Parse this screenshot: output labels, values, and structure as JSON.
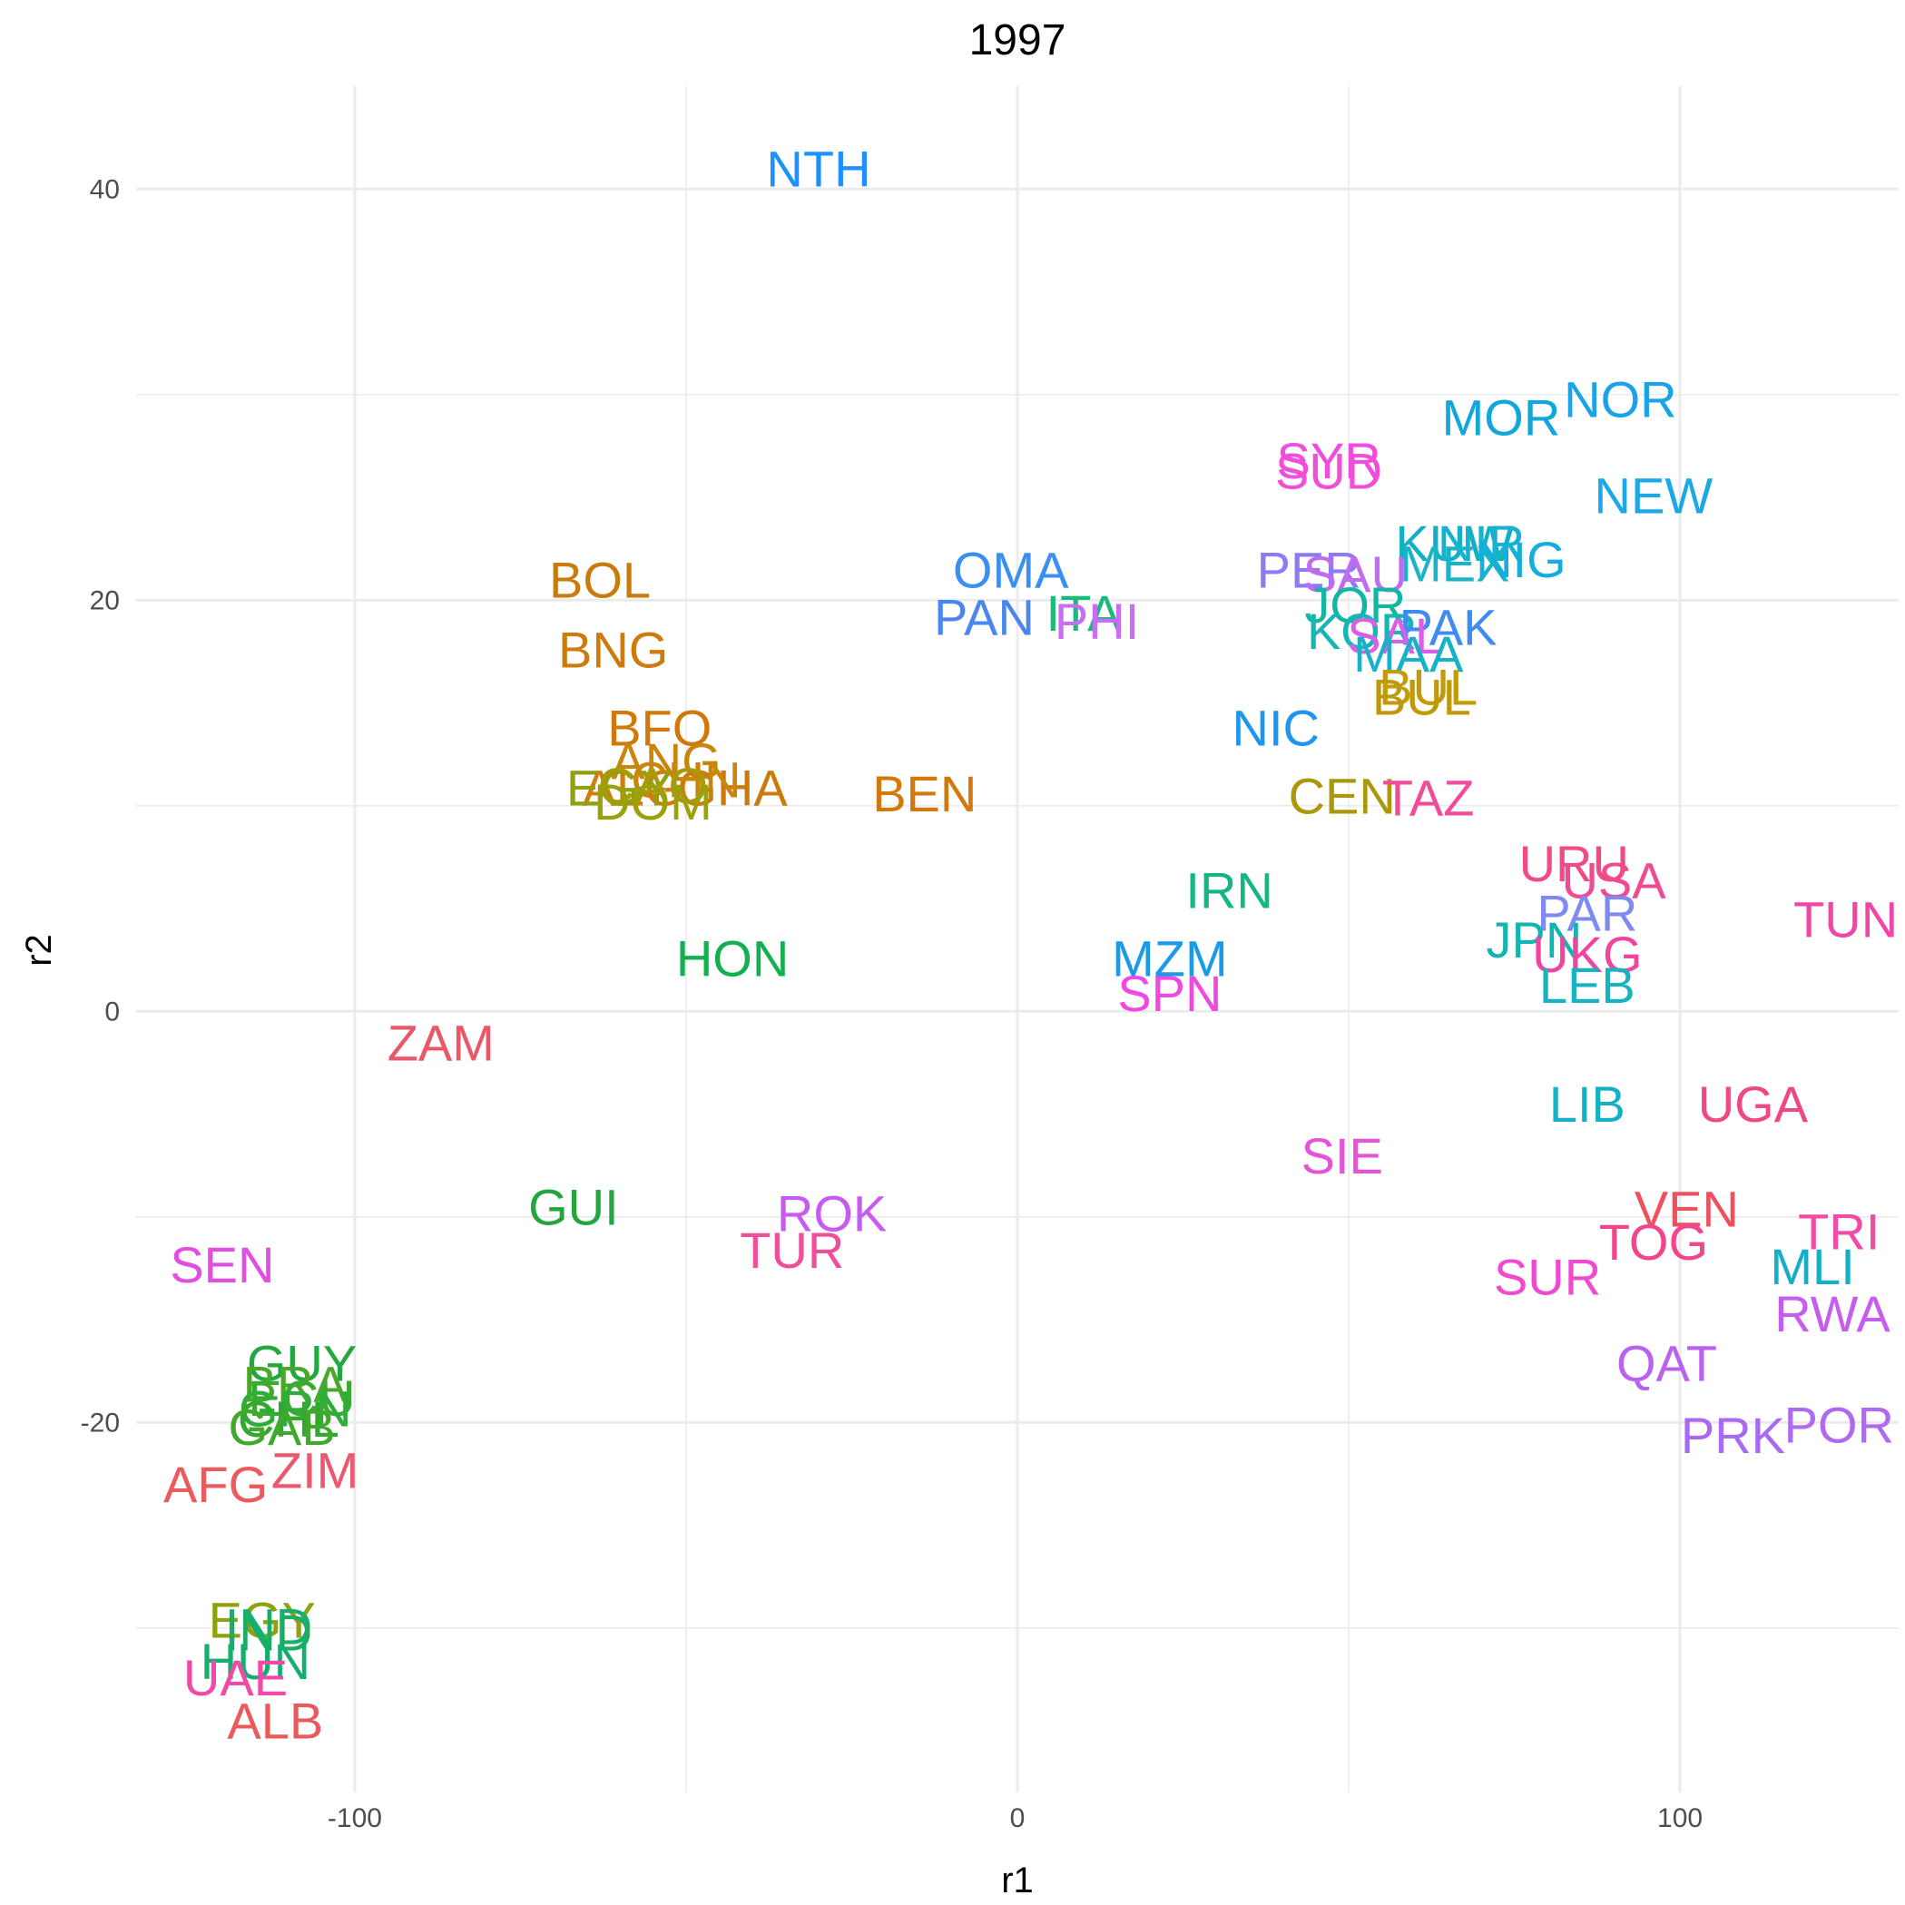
{
  "chart_data": {
    "type": "scatter",
    "title": "1997",
    "xlabel": "r1",
    "ylabel": "r2",
    "xlim": [
      -133,
      133
    ],
    "ylim": [
      -38,
      45
    ],
    "x_ticks": [
      -100,
      0,
      100
    ],
    "x_tick_labels": [
      "-100",
      "0",
      "100"
    ],
    "y_ticks": [
      -20,
      0,
      20,
      40
    ],
    "y_tick_labels": [
      "-20",
      "0",
      "20",
      "40"
    ],
    "grid": true,
    "legend": "none",
    "points": [
      {
        "label": "NTH",
        "x": -30,
        "y": 41,
        "color": "#1E90FF"
      },
      {
        "label": "NOR",
        "x": 91,
        "y": 29.8,
        "color": "#1AA3E8"
      },
      {
        "label": "MOR",
        "x": 73,
        "y": 28.9,
        "color": "#13A6DB"
      },
      {
        "label": "SYR",
        "x": 47,
        "y": 26.8,
        "color": "#F04CE0"
      },
      {
        "label": "SUD",
        "x": 47,
        "y": 26.3,
        "color": "#F24FD8"
      },
      {
        "label": "NEW",
        "x": 96,
        "y": 25.1,
        "color": "#1AA8E6"
      },
      {
        "label": "KUW",
        "x": 66,
        "y": 22.8,
        "color": "#12B0C4"
      },
      {
        "label": "NIR",
        "x": 70,
        "y": 22.8,
        "color": "#15B2D2"
      },
      {
        "label": "MEX",
        "x": 66,
        "y": 21.8,
        "color": "#1AB4C8"
      },
      {
        "label": "NIG",
        "x": 76,
        "y": 22.0,
        "color": "#15AEDC"
      },
      {
        "label": "OMA",
        "x": -1,
        "y": 21.5,
        "color": "#3A8FF2"
      },
      {
        "label": "PER",
        "x": 44,
        "y": 21.5,
        "color": "#8E7BF2"
      },
      {
        "label": "SAU",
        "x": 51,
        "y": 21.3,
        "color": "#C16BF0"
      },
      {
        "label": "BOL",
        "x": -63,
        "y": 21.0,
        "color": "#C97B0D"
      },
      {
        "label": "JOR",
        "x": 51,
        "y": 19.8,
        "color": "#13B6A3"
      },
      {
        "label": "PAN",
        "x": -5,
        "y": 19.2,
        "color": "#4B86EE"
      },
      {
        "label": "ITA",
        "x": 10,
        "y": 19.4,
        "color": "#18BA7E"
      },
      {
        "label": "PHI",
        "x": 12,
        "y": 19.0,
        "color": "#C86EF2"
      },
      {
        "label": "KOR",
        "x": 52,
        "y": 18.5,
        "color": "#17B6B6"
      },
      {
        "label": "PAK",
        "x": 65,
        "y": 18.7,
        "color": "#3E8CF0"
      },
      {
        "label": "SAL",
        "x": 57,
        "y": 18.3,
        "color": "#DC5EE8"
      },
      {
        "label": "MAA",
        "x": 59,
        "y": 17.4,
        "color": "#15B2C8"
      },
      {
        "label": "BNG",
        "x": -61,
        "y": 17.6,
        "color": "#CC7B0C"
      },
      {
        "label": "BUL",
        "x": 62,
        "y": 15.8,
        "color": "#C29C08"
      },
      {
        "label": "BUL",
        "x": 61,
        "y": 15.3,
        "color": "#BE9A0A"
      },
      {
        "label": "BFO",
        "x": -54,
        "y": 13.8,
        "color": "#D0790A"
      },
      {
        "label": "NIC",
        "x": 39,
        "y": 13.8,
        "color": "#1E96F0"
      },
      {
        "label": "ANG",
        "x": -53,
        "y": 12.2,
        "color": "#C8860D"
      },
      {
        "label": "BEN",
        "x": -14,
        "y": 10.6,
        "color": "#D2780C"
      },
      {
        "label": "GHA",
        "x": -43,
        "y": 10.9,
        "color": "#CC7A0C"
      },
      {
        "label": "CHN",
        "x": -50,
        "y": 11.3,
        "color": "#C8860D"
      },
      {
        "label": "ALG",
        "x": -58,
        "y": 10.9,
        "color": "#D27B0E"
      },
      {
        "label": "EGY",
        "x": -60,
        "y": 10.9,
        "color": "#8FA20E"
      },
      {
        "label": "CAO",
        "x": -55,
        "y": 11.0,
        "color": "#A89A08"
      },
      {
        "label": "DOM",
        "x": -55,
        "y": 10.2,
        "color": "#9AA10B"
      },
      {
        "label": "CEN",
        "x": 49,
        "y": 10.5,
        "color": "#AC970A"
      },
      {
        "label": "TAZ",
        "x": 62,
        "y": 10.4,
        "color": "#F04C9B"
      },
      {
        "label": "URU",
        "x": 84,
        "y": 7.2,
        "color": "#F04B86"
      },
      {
        "label": "USA",
        "x": 90,
        "y": 6.4,
        "color": "#F04A93"
      },
      {
        "label": "IRN",
        "x": 32,
        "y": 5.9,
        "color": "#15B684"
      },
      {
        "label": "PAR",
        "x": 86,
        "y": 4.8,
        "color": "#7F8AF2"
      },
      {
        "label": "TUN",
        "x": 125,
        "y": 4.5,
        "color": "#F246A6"
      },
      {
        "label": "JPN",
        "x": 78,
        "y": 3.5,
        "color": "#14B4B0"
      },
      {
        "label": "UKG",
        "x": 86,
        "y": 2.8,
        "color": "#F044A0"
      },
      {
        "label": "HON",
        "x": -43,
        "y": 2.6,
        "color": "#12B04F"
      },
      {
        "label": "MZM",
        "x": 23,
        "y": 2.6,
        "color": "#1A9BEA"
      },
      {
        "label": "LEB",
        "x": 86,
        "y": 1.3,
        "color": "#16B4C0"
      },
      {
        "label": "SPN",
        "x": 23,
        "y": 0.9,
        "color": "#F048E0"
      },
      {
        "label": "ZAM",
        "x": -87,
        "y": -1.5,
        "color": "#E8576A"
      },
      {
        "label": "LIB",
        "x": 86,
        "y": -4.5,
        "color": "#16B0C4"
      },
      {
        "label": "UGA",
        "x": 111,
        "y": -4.5,
        "color": "#F04887"
      },
      {
        "label": "SIE",
        "x": 49,
        "y": -7.0,
        "color": "#E454D6"
      },
      {
        "label": "GUI",
        "x": -67,
        "y": -9.5,
        "color": "#22A63D"
      },
      {
        "label": "ROK",
        "x": -28,
        "y": -9.8,
        "color": "#C85BEF"
      },
      {
        "label": "VEN",
        "x": 101,
        "y": -9.6,
        "color": "#F0505E"
      },
      {
        "label": "TRI",
        "x": 124,
        "y": -10.7,
        "color": "#F04BA7"
      },
      {
        "label": "TOG",
        "x": 96,
        "y": -11.2,
        "color": "#F0468E"
      },
      {
        "label": "TUR",
        "x": -34,
        "y": -11.6,
        "color": "#F04E9B"
      },
      {
        "label": "SEN",
        "x": -120,
        "y": -12.3,
        "color": "#E24EE0"
      },
      {
        "label": "MLI",
        "x": 120,
        "y": -12.4,
        "color": "#16AEC8"
      },
      {
        "label": "SUR",
        "x": 80,
        "y": -12.9,
        "color": "#F24ACE"
      },
      {
        "label": "RWA",
        "x": 123,
        "y": -14.7,
        "color": "#C55EF0"
      },
      {
        "label": "QAT",
        "x": 98,
        "y": -17.1,
        "color": "#BA62F0"
      },
      {
        "label": "GUY",
        "x": -108,
        "y": -17.1,
        "color": "#22A83F"
      },
      {
        "label": "BRA",
        "x": -109,
        "y": -18.1,
        "color": "#49A82A"
      },
      {
        "label": "ECU",
        "x": -108,
        "y": -18.8,
        "color": "#3AAA32"
      },
      {
        "label": "GRN",
        "x": -109,
        "y": -19.3,
        "color": "#2EAD38"
      },
      {
        "label": "CHL",
        "x": -110,
        "y": -19.8,
        "color": "#32A82E"
      },
      {
        "label": "GAB",
        "x": -111,
        "y": -20.2,
        "color": "#40A92B"
      },
      {
        "label": "PRK",
        "x": 108,
        "y": -20.6,
        "color": "#A86AF3"
      },
      {
        "label": "POR",
        "x": 124,
        "y": -20.1,
        "color": "#AF6AF2"
      },
      {
        "label": "ZIM",
        "x": -106,
        "y": -22.3,
        "color": "#EC5870"
      },
      {
        "label": "AFG",
        "x": -121,
        "y": -23.0,
        "color": "#EC5A5E"
      },
      {
        "label": "EGY",
        "x": -114,
        "y": -29.6,
        "color": "#8FA10E"
      },
      {
        "label": "IND",
        "x": -113,
        "y": -29.9,
        "color": "#14B06E"
      },
      {
        "label": "IND",
        "x": -113,
        "y": -30.2,
        "color": "#1EAC64"
      },
      {
        "label": "HUN",
        "x": -115,
        "y": -31.6,
        "color": "#14AF6E"
      },
      {
        "label": "UAE",
        "x": -118,
        "y": -32.4,
        "color": "#F049A8"
      },
      {
        "label": "ALB",
        "x": -112,
        "y": -34.5,
        "color": "#EB5A5A"
      }
    ]
  }
}
